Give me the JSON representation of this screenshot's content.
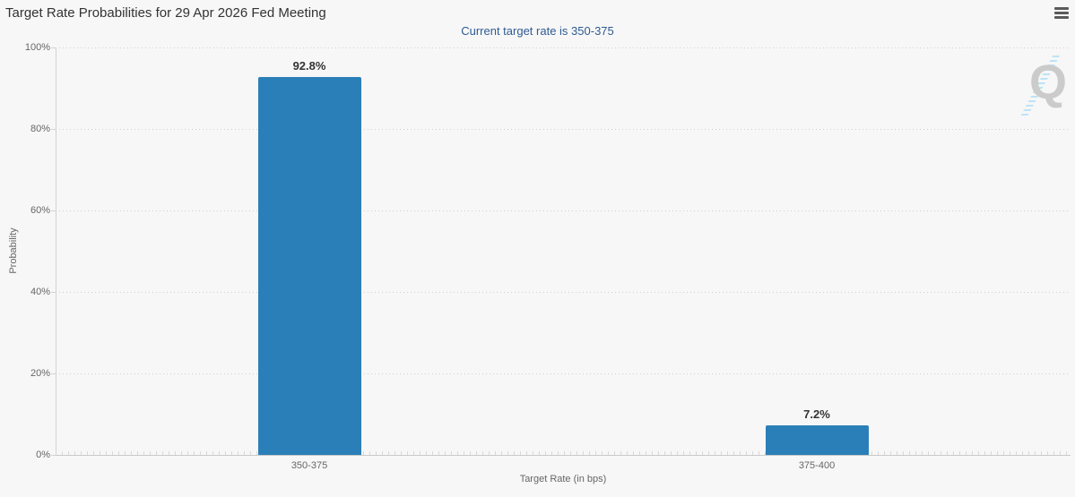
{
  "chart_data": {
    "type": "bar",
    "title": "Target Rate Probabilities for 29 Apr 2026 Fed Meeting",
    "subtitle": "Current target rate is 350-375",
    "categories": [
      "350-375",
      "375-400"
    ],
    "values": [
      92.8,
      7.2
    ],
    "data_labels": [
      "92.8%",
      "7.2%"
    ],
    "xlabel": "Target Rate (in bps)",
    "ylabel": "Probability",
    "ylim": [
      0,
      100
    ],
    "ytick_interval": 20,
    "ytick_labels": [
      "0%",
      "20%",
      "40%",
      "60%",
      "80%",
      "100%"
    ],
    "grid": "horizontal-dotted",
    "legend": "none",
    "bar_color": "#2b7fb8"
  },
  "controls": {
    "menu_icon": "hamburger-menu-icon"
  },
  "watermark": {
    "letter": "Q"
  },
  "colors": {
    "background": "#f7f7f7",
    "bar": "#2b7fb8",
    "title_text": "#333333",
    "subtitle_text": "#2f5b93",
    "axis_text": "#666666",
    "grid": "#cfcfcf"
  }
}
